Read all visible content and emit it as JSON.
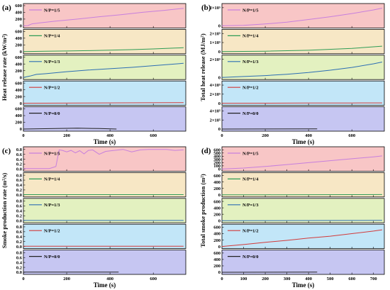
{
  "panels": [
    {
      "letter": "(a)",
      "ylabel": "Heat release rate (kW/m²)",
      "xlabel": "Time (s)",
      "xlim": [
        0,
        750
      ],
      "xticks": [
        "0",
        "200",
        "400",
        "600"
      ],
      "xtick_vals": [
        0,
        200,
        400,
        600
      ]
    },
    {
      "letter": "(b)",
      "ylabel": "Total heat release (MJ/m²)",
      "xlabel": "Time (s)",
      "xlim": [
        0,
        750
      ],
      "xticks": [
        "0",
        "200",
        "400",
        "600"
      ],
      "xtick_vals": [
        0,
        200,
        400,
        600
      ]
    },
    {
      "letter": "(c)",
      "ylabel": "Smoke production rate (m²/s)",
      "xlabel": "Time (s)",
      "xlim": [
        0,
        750
      ],
      "xticks": [
        "0",
        "200",
        "400",
        "600"
      ],
      "xtick_vals": [
        0,
        200,
        400,
        600
      ]
    },
    {
      "letter": "(d)",
      "ylabel": "Total smoke production (m²)",
      "xlabel": "Time (s)",
      "xlim": [
        0,
        750
      ],
      "xticks": [
        "0",
        "100",
        "200",
        "300",
        "400",
        "500",
        "600",
        "700"
      ],
      "xtick_vals": [
        0,
        100,
        200,
        300,
        400,
        500,
        600,
        700
      ]
    }
  ],
  "subplot_bg_colors": [
    "#f8c6c6",
    "#f7e7c5",
    "#e3f1c0",
    "#c2e6f8",
    "#c6c6f2"
  ],
  "chart_data": [
    {
      "type": "line",
      "panel": "a",
      "rows": [
        {
          "name": "N/P=1/5",
          "color": "#c77fdd",
          "yticks": [
            "0",
            "200",
            "400",
            "600"
          ],
          "ytick_vals": [
            0,
            200,
            400,
            600
          ],
          "ylim": [
            0,
            620
          ],
          "x": [
            0,
            20,
            40,
            80,
            150,
            250,
            350,
            450,
            550,
            650,
            740
          ],
          "y": [
            0,
            5,
            60,
            90,
            140,
            200,
            270,
            330,
            400,
            460,
            520
          ]
        },
        {
          "name": "N/P=1/4",
          "color": "#2e9c55",
          "yticks": [
            "0",
            "200",
            "400",
            "600"
          ],
          "ytick_vals": [
            0,
            200,
            400,
            600
          ],
          "ylim": [
            0,
            620
          ],
          "x": [
            0,
            100,
            200,
            300,
            400,
            500,
            600,
            700,
            740
          ],
          "y": [
            0,
            10,
            20,
            30,
            45,
            60,
            80,
            105,
            115
          ]
        },
        {
          "name": "N/P=1/3",
          "color": "#2c6db3",
          "yticks": [
            "0",
            "200",
            "400",
            "600"
          ],
          "ytick_vals": [
            0,
            200,
            400,
            600
          ],
          "ylim": [
            0,
            620
          ],
          "x": [
            0,
            30,
            60,
            100,
            200,
            300,
            400,
            500,
            600,
            700,
            740
          ],
          "y": [
            0,
            40,
            90,
            110,
            170,
            220,
            260,
            300,
            350,
            400,
            420
          ]
        },
        {
          "name": "N/P=1/2",
          "color": "#d23a3a",
          "yticks": [
            "0",
            "200",
            "400",
            "600"
          ],
          "ytick_vals": [
            0,
            200,
            400,
            600
          ],
          "ylim": [
            0,
            620
          ],
          "x": [
            0,
            200,
            400,
            600,
            740
          ],
          "y": [
            0,
            5,
            10,
            15,
            20
          ]
        },
        {
          "name": "N/P=0/0",
          "color": "#222222",
          "yticks": [
            "0",
            "200",
            "400",
            "600"
          ],
          "ytick_vals": [
            0,
            200,
            400,
            600
          ],
          "ylim": [
            0,
            620
          ],
          "x": [
            0,
            150,
            250,
            350,
            430
          ],
          "y": [
            0,
            15,
            25,
            15,
            0
          ]
        }
      ]
    },
    {
      "type": "line",
      "panel": "b",
      "rows": [
        {
          "name": "N/P=1/5",
          "color": "#c77fdd",
          "yticks": [
            "0",
            "2×10⁵"
          ],
          "ytick_vals": [
            0,
            200000
          ],
          "ylim": [
            0,
            230000
          ],
          "x": [
            0,
            100,
            200,
            300,
            400,
            500,
            600,
            700,
            740
          ],
          "y": [
            0,
            5000,
            20000,
            40000,
            70000,
            100000,
            135000,
            175000,
            195000
          ]
        },
        {
          "name": "N/P=1/4",
          "color": "#2e9c55",
          "yticks": [
            "0",
            "1×10⁵",
            "2×10⁵"
          ],
          "ytick_vals": [
            0,
            100000,
            200000
          ],
          "ylim": [
            0,
            230000
          ],
          "x": [
            0,
            200,
            400,
            600,
            740
          ],
          "y": [
            0,
            5000,
            15000,
            35000,
            60000
          ]
        },
        {
          "name": "N/P=1/3",
          "color": "#2c6db3",
          "yticks": [
            "0",
            "2×10⁵"
          ],
          "ytick_vals": [
            0,
            200000
          ],
          "ylim": [
            0,
            230000
          ],
          "x": [
            0,
            100,
            200,
            300,
            400,
            500,
            600,
            700,
            740
          ],
          "y": [
            0,
            10000,
            20000,
            35000,
            55000,
            80000,
            110000,
            150000,
            170000
          ]
        },
        {
          "name": "N/P=1/2",
          "color": "#d23a3a",
          "yticks": [
            "0",
            "2×10⁵",
            "4×10⁵"
          ],
          "ytick_vals": [
            0,
            200000,
            400000
          ],
          "ylim": [
            0,
            460000
          ],
          "x": [
            0,
            200,
            400,
            600,
            740
          ],
          "y": [
            0,
            2000,
            4000,
            6000,
            8000
          ]
        },
        {
          "name": "N/P=0/0",
          "color": "#222222",
          "yticks": [
            "0",
            "2×10⁵",
            "4×10⁵"
          ],
          "ytick_vals": [
            0,
            200000,
            400000
          ],
          "ylim": [
            0,
            460000
          ],
          "x": [
            0,
            200,
            440
          ],
          "y": [
            0,
            2000,
            3000
          ]
        }
      ]
    },
    {
      "type": "line",
      "panel": "c",
      "rows": [
        {
          "name": "N/P=1/5",
          "color": "#c77fdd",
          "yticks": [
            "0.0",
            "0.2",
            "0.4",
            "0.6",
            "0.8"
          ],
          "ytick_vals": [
            0,
            0.2,
            0.4,
            0.6,
            0.8
          ],
          "ylim": [
            0,
            0.85
          ],
          "x": [
            0,
            50,
            120,
            150,
            165,
            180,
            200,
            220,
            240,
            260,
            280,
            300,
            320,
            350,
            380,
            420,
            460,
            500,
            540,
            580,
            620,
            660,
            700,
            740
          ],
          "y": [
            0.02,
            0.02,
            0.02,
            0.1,
            0.78,
            0.76,
            0.7,
            0.76,
            0.66,
            0.75,
            0.62,
            0.76,
            0.78,
            0.6,
            0.72,
            0.76,
            0.8,
            0.7,
            0.78,
            0.8,
            0.8,
            0.8,
            0.76,
            0.78
          ]
        },
        {
          "name": "N/P=1/4",
          "color": "#2e9c55",
          "yticks": [
            "0.0",
            "0.2",
            "0.4",
            "0.6",
            "0.8"
          ],
          "ytick_vals": [
            0,
            0.2,
            0.4,
            0.6,
            0.8
          ],
          "ylim": [
            0,
            0.85
          ],
          "x": [
            0,
            200,
            400,
            600,
            740
          ],
          "y": [
            0.01,
            0.01,
            0.01,
            0.01,
            0.01
          ]
        },
        {
          "name": "N/P=1/3",
          "color": "#2c6db3",
          "yticks": [
            "0.0",
            "0.2",
            "0.4",
            "0.6",
            "0.8"
          ],
          "ytick_vals": [
            0,
            0.2,
            0.4,
            0.6,
            0.8
          ],
          "ylim": [
            0,
            0.85
          ],
          "x": [
            0,
            200,
            400,
            600,
            740
          ],
          "y": [
            0.01,
            0.01,
            0.01,
            0.01,
            0.01
          ]
        },
        {
          "name": "N/P=1/2",
          "color": "#d23a3a",
          "yticks": [
            "0.0",
            "0.2",
            "0.4",
            "0.6",
            "0.8"
          ],
          "ytick_vals": [
            0,
            0.2,
            0.4,
            0.6,
            0.8
          ],
          "ylim": [
            0,
            0.85
          ],
          "x": [
            0,
            200,
            400,
            600,
            740
          ],
          "y": [
            0.01,
            0.01,
            0.01,
            0.01,
            0.01
          ]
        },
        {
          "name": "N/P=0/0",
          "color": "#222222",
          "yticks": [
            "0.0",
            "0.2",
            "0.4",
            "0.6",
            "0.8"
          ],
          "ytick_vals": [
            0,
            0.2,
            0.4,
            0.6,
            0.8
          ],
          "ylim": [
            0,
            0.85
          ],
          "x": [
            0,
            200,
            440
          ],
          "y": [
            0.01,
            0.01,
            0.01
          ]
        }
      ]
    },
    {
      "type": "line",
      "panel": "d",
      "rows": [
        {
          "name": "N/P=1/5",
          "color": "#c77fdd",
          "yticks": [
            "0",
            "100",
            "200",
            "300",
            "400",
            "500",
            "600"
          ],
          "ytick_vals": [
            0,
            100,
            200,
            300,
            400,
            500,
            600
          ],
          "ylim": [
            0,
            650
          ],
          "x": [
            0,
            100,
            200,
            300,
            400,
            500,
            600,
            700,
            740
          ],
          "y": [
            0,
            30,
            80,
            140,
            200,
            260,
            320,
            380,
            410
          ]
        },
        {
          "name": "N/P=1/4",
          "color": "#2e9c55",
          "yticks": [
            "0",
            "200",
            "400",
            "600"
          ],
          "ytick_vals": [
            0,
            200,
            400,
            600
          ],
          "ylim": [
            0,
            650
          ],
          "x": [
            0,
            200,
            400,
            600,
            740
          ],
          "y": [
            0,
            2,
            4,
            6,
            8
          ]
        },
        {
          "name": "N/P=1/3",
          "color": "#2c6db3",
          "yticks": [
            "0",
            "200",
            "400",
            "600"
          ],
          "ytick_vals": [
            0,
            200,
            400,
            600
          ],
          "ylim": [
            0,
            650
          ],
          "x": [
            0,
            200,
            400,
            600,
            740
          ],
          "y": [
            0,
            2,
            4,
            6,
            8
          ]
        },
        {
          "name": "N/P=1/2",
          "color": "#d23a3a",
          "yticks": [
            "0",
            "200",
            "400",
            "600"
          ],
          "ytick_vals": [
            0,
            200,
            400,
            600
          ],
          "ylim": [
            0,
            650
          ],
          "x": [
            0,
            100,
            200,
            300,
            400,
            500,
            600,
            700,
            740
          ],
          "y": [
            0,
            60,
            130,
            190,
            260,
            320,
            400,
            480,
            520
          ]
        },
        {
          "name": "N/P=0/0",
          "color": "#222222",
          "yticks": [
            "0",
            "200",
            "400",
            "600"
          ],
          "ytick_vals": [
            0,
            200,
            400,
            600
          ],
          "ylim": [
            0,
            650
          ],
          "x": [
            0,
            200,
            440
          ],
          "y": [
            0,
            2,
            4
          ]
        }
      ]
    }
  ]
}
